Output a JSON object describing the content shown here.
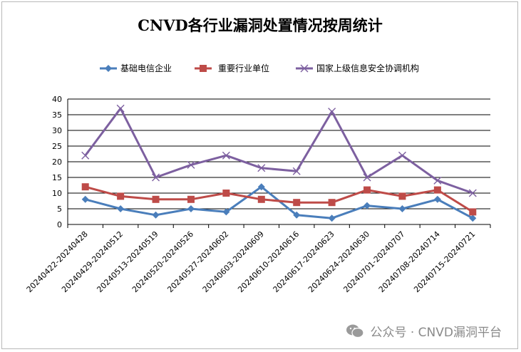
{
  "chart_data": {
    "type": "line",
    "title": "CNVD各行业漏洞处置情况按周统计",
    "categories": [
      "20240422-20240428",
      "20240429-20240512",
      "20240513-20240519",
      "20240520-20240526",
      "20240527-20240602",
      "20240603-20240609",
      "20240610-20240616",
      "20240617-20240623",
      "20240624-20240630",
      "20240701-20240707",
      "20240708-20240714",
      "20240715-20240721"
    ],
    "series": [
      {
        "name": "基础电信企业",
        "color": "#4a7ebb",
        "marker": "diamond",
        "values": [
          8,
          5,
          3,
          5,
          4,
          12,
          3,
          2,
          6,
          5,
          8,
          2
        ]
      },
      {
        "name": "重要行业单位",
        "color": "#be4b48",
        "marker": "square",
        "values": [
          12,
          9,
          8,
          8,
          10,
          8,
          7,
          7,
          11,
          9,
          11,
          4
        ]
      },
      {
        "name": "国家上级信息安全协调机构",
        "color": "#7d60a0",
        "marker": "x",
        "values": [
          22,
          37,
          15,
          19,
          22,
          18,
          17,
          36,
          15,
          22,
          14,
          10
        ]
      }
    ],
    "ylim": [
      0,
      40
    ],
    "yticks": [
      0,
      5,
      10,
      15,
      20,
      25,
      30,
      35,
      40
    ],
    "grid": true,
    "legend": "top"
  },
  "watermark": {
    "text": "公众号 · CNVD漏洞平台",
    "icon": "wechat-icon"
  }
}
